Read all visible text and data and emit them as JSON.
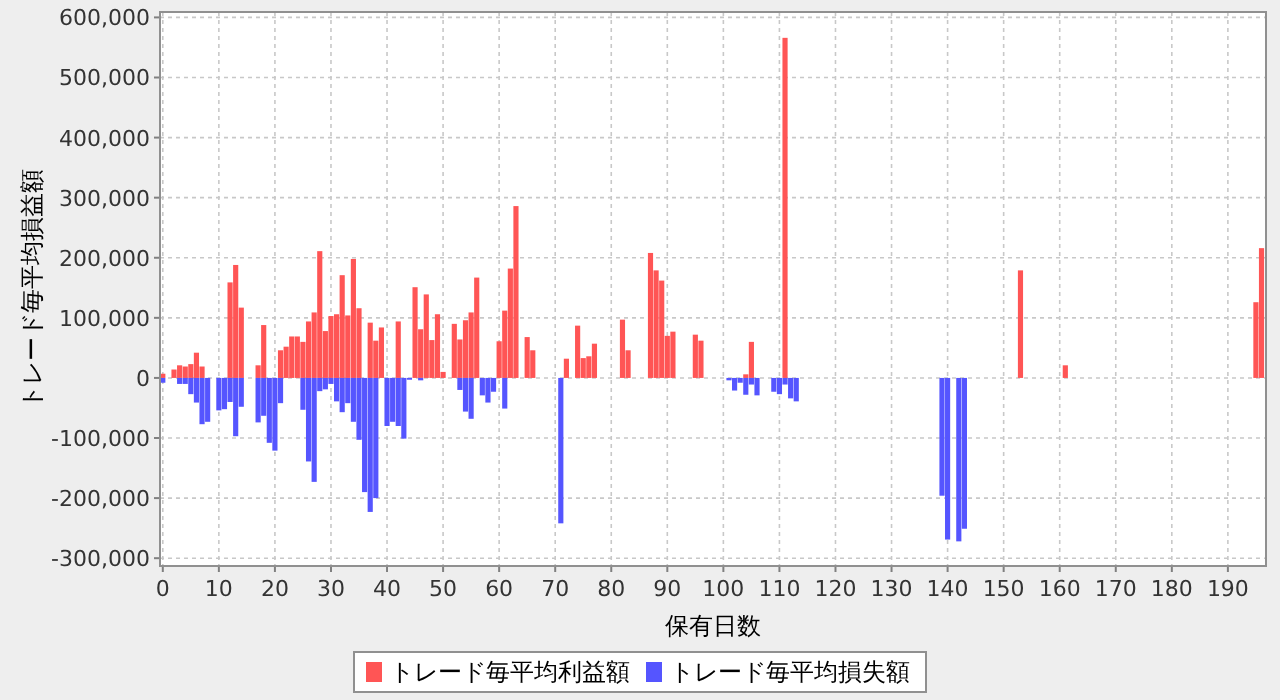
{
  "chart_data": {
    "type": "bar",
    "xlabel": "保有日数",
    "ylabel": "トレード毎平均損益額",
    "xlim": [
      -0.5,
      196.8
    ],
    "xticks": [
      0,
      10,
      20,
      30,
      40,
      50,
      60,
      70,
      80,
      90,
      100,
      110,
      120,
      130,
      140,
      150,
      160,
      170,
      180,
      190
    ],
    "ylim": [
      -313000,
      609000
    ],
    "yticks": [
      {
        "value": -300000,
        "label": "-300,000"
      },
      {
        "value": -200000,
        "label": "-200,000"
      },
      {
        "value": -100000,
        "label": "-100,000"
      },
      {
        "value": 0,
        "label": "0"
      },
      {
        "value": 100000,
        "label": "100,000"
      },
      {
        "value": 200000,
        "label": "200,000"
      },
      {
        "value": 300000,
        "label": "300,000"
      },
      {
        "value": 400000,
        "label": "400,000"
      },
      {
        "value": 500000,
        "label": "500,000"
      },
      {
        "value": 600000,
        "label": "600,000"
      }
    ],
    "grid": true,
    "legend": "bottom",
    "series": [
      {
        "name": "トレード毎平均利益額",
        "color": "#ff5555",
        "x": [
          0,
          2,
          3,
          4,
          5,
          6,
          7,
          12,
          13,
          14,
          17,
          18,
          21,
          22,
          23,
          24,
          25,
          26,
          27,
          28,
          29,
          30,
          31,
          32,
          33,
          34,
          35,
          37,
          38,
          39,
          42,
          45,
          46,
          47,
          48,
          49,
          50,
          52,
          53,
          54,
          55,
          56,
          60,
          61,
          62,
          63,
          65,
          66,
          72,
          74,
          75,
          76,
          77,
          82,
          83,
          87,
          88,
          89,
          90,
          91,
          95,
          96,
          104,
          105,
          111,
          153,
          161,
          195,
          196
        ],
        "values": [
          7000,
          14000,
          21000,
          19000,
          23000,
          42000,
          19000,
          159000,
          188000,
          117000,
          21000,
          88000,
          46000,
          52000,
          69000,
          69000,
          60000,
          94000,
          109000,
          211000,
          78000,
          103000,
          106000,
          171000,
          104000,
          198000,
          116000,
          92000,
          62000,
          84000,
          94000,
          151000,
          81000,
          139000,
          63000,
          106000,
          10000,
          90000,
          64000,
          96000,
          109000,
          167000,
          61000,
          112000,
          182000,
          286000,
          68000,
          46000,
          32000,
          87000,
          33000,
          36000,
          57000,
          97000,
          46000,
          208000,
          179000,
          162000,
          70000,
          77000,
          72000,
          62000,
          6000,
          60000,
          566000,
          179000,
          21000,
          126000,
          216000
        ]
      },
      {
        "name": "トレード毎平均損失額",
        "color": "#5555ff",
        "x": [
          0,
          3,
          4,
          5,
          6,
          7,
          8,
          10,
          11,
          12,
          13,
          14,
          17,
          18,
          19,
          20,
          21,
          25,
          26,
          27,
          28,
          29,
          30,
          31,
          32,
          33,
          34,
          35,
          36,
          37,
          38,
          40,
          41,
          42,
          43,
          44,
          46,
          53,
          54,
          55,
          57,
          58,
          59,
          61,
          71,
          101,
          102,
          103,
          104,
          105,
          106,
          109,
          110,
          111,
          112,
          113,
          139,
          140,
          142,
          143
        ],
        "values": [
          -8000,
          -10000,
          -10000,
          -27000,
          -41000,
          -77000,
          -73000,
          -54000,
          -52000,
          -40000,
          -97000,
          -48000,
          -74000,
          -63000,
          -108000,
          -121000,
          -42000,
          -53000,
          -139000,
          -173000,
          -22000,
          -19000,
          -10000,
          -39000,
          -57000,
          -42000,
          -73000,
          -103000,
          -190000,
          -223000,
          -200000,
          -80000,
          -73000,
          -80000,
          -101000,
          -3000,
          -4000,
          -20000,
          -56000,
          -68000,
          -29000,
          -41000,
          -23000,
          -51000,
          -242000,
          -4000,
          -21000,
          -8000,
          -28000,
          -11000,
          -29000,
          -23000,
          -27000,
          -11000,
          -34000,
          -39000,
          -196000,
          -269000,
          -272000,
          -251000
        ]
      }
    ]
  }
}
